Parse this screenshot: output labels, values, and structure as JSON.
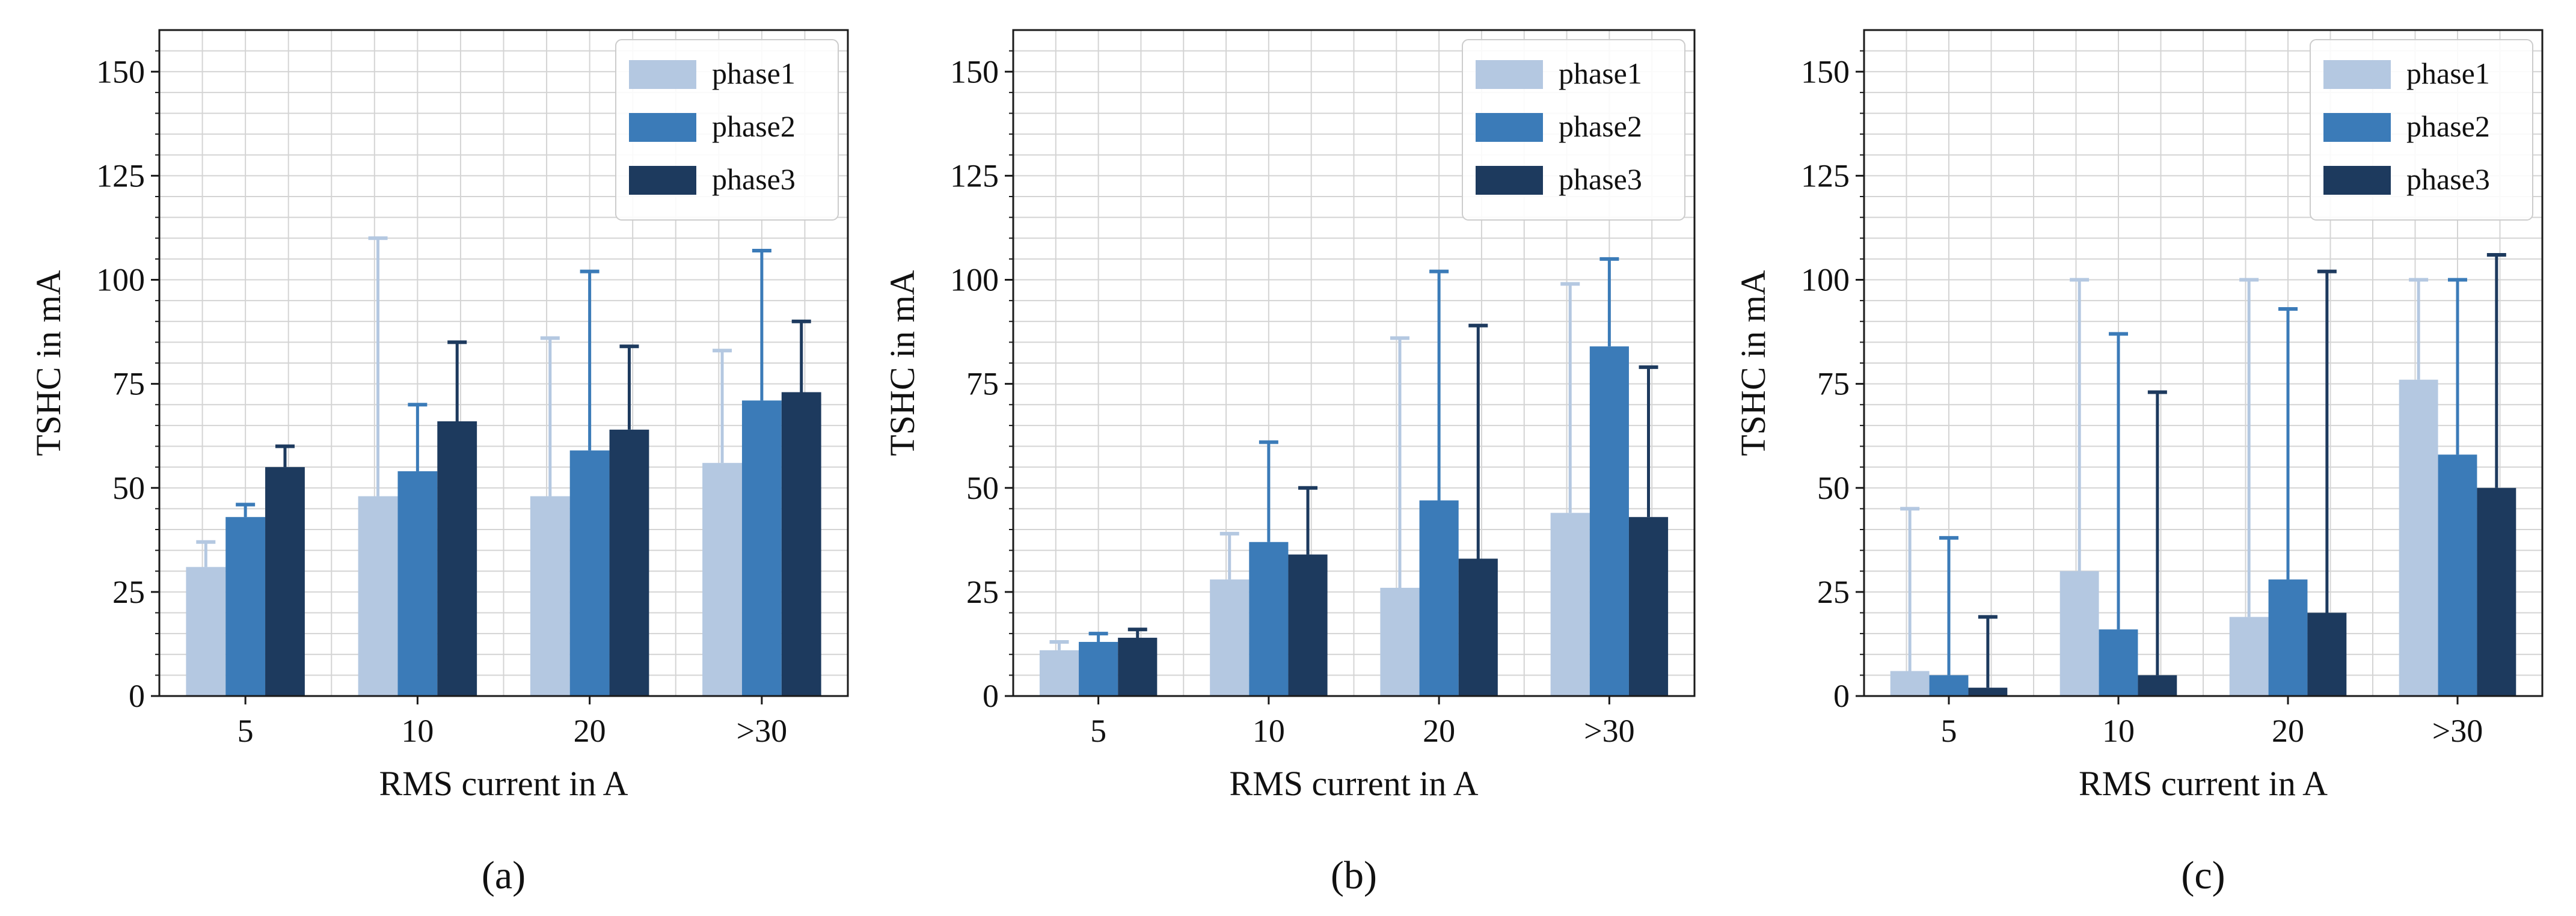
{
  "figure": {
    "colors": {
      "phase1": "#b4c8e1",
      "phase2": "#3b7bb8",
      "phase3": "#1d3a5e",
      "grid": "#d4d4d4",
      "frame": "#1a1a1a"
    }
  },
  "chart_data": [
    {
      "type": "bar",
      "panel_label": "(a)",
      "categories": [
        "5",
        "10",
        "20",
        ">30"
      ],
      "xlabel": "RMS current in A",
      "ylabel": "TSHC in mA",
      "ylim": [
        0,
        160
      ],
      "yticks": [
        0,
        25,
        50,
        75,
        100,
        125,
        150
      ],
      "grid": true,
      "legend_position": "top-right",
      "series": [
        {
          "name": "phase1",
          "values": [
            31,
            48,
            48,
            56
          ],
          "error_upper": [
            37,
            110,
            86,
            83
          ]
        },
        {
          "name": "phase2",
          "values": [
            43,
            54,
            59,
            71
          ],
          "error_upper": [
            46,
            70,
            102,
            107
          ]
        },
        {
          "name": "phase3",
          "values": [
            55,
            66,
            64,
            73
          ],
          "error_upper": [
            60,
            85,
            84,
            90
          ]
        }
      ]
    },
    {
      "type": "bar",
      "panel_label": "(b)",
      "categories": [
        "5",
        "10",
        "20",
        ">30"
      ],
      "xlabel": "RMS current in A",
      "ylabel": "TSHC in mA",
      "ylim": [
        0,
        160
      ],
      "yticks": [
        0,
        25,
        50,
        75,
        100,
        125,
        150
      ],
      "grid": true,
      "legend_position": "top-right",
      "series": [
        {
          "name": "phase1",
          "values": [
            11,
            28,
            26,
            44
          ],
          "error_upper": [
            13,
            39,
            86,
            99
          ]
        },
        {
          "name": "phase2",
          "values": [
            13,
            37,
            47,
            84
          ],
          "error_upper": [
            15,
            61,
            102,
            105
          ]
        },
        {
          "name": "phase3",
          "values": [
            14,
            34,
            33,
            43
          ],
          "error_upper": [
            16,
            50,
            89,
            79
          ]
        }
      ]
    },
    {
      "type": "bar",
      "panel_label": "(c)",
      "categories": [
        "5",
        "10",
        "20",
        ">30"
      ],
      "xlabel": "RMS current in A",
      "ylabel": "TSHC in mA",
      "ylim": [
        0,
        160
      ],
      "yticks": [
        0,
        25,
        50,
        75,
        100,
        125,
        150
      ],
      "grid": true,
      "legend_position": "top-right",
      "series": [
        {
          "name": "phase1",
          "values": [
            6,
            30,
            19,
            76
          ],
          "error_upper": [
            45,
            100,
            100,
            100
          ]
        },
        {
          "name": "phase2",
          "values": [
            5,
            16,
            28,
            58
          ],
          "error_upper": [
            38,
            87,
            93,
            100
          ]
        },
        {
          "name": "phase3",
          "values": [
            2,
            5,
            20,
            50
          ],
          "error_upper": [
            19,
            73,
            102,
            106
          ]
        }
      ]
    }
  ]
}
